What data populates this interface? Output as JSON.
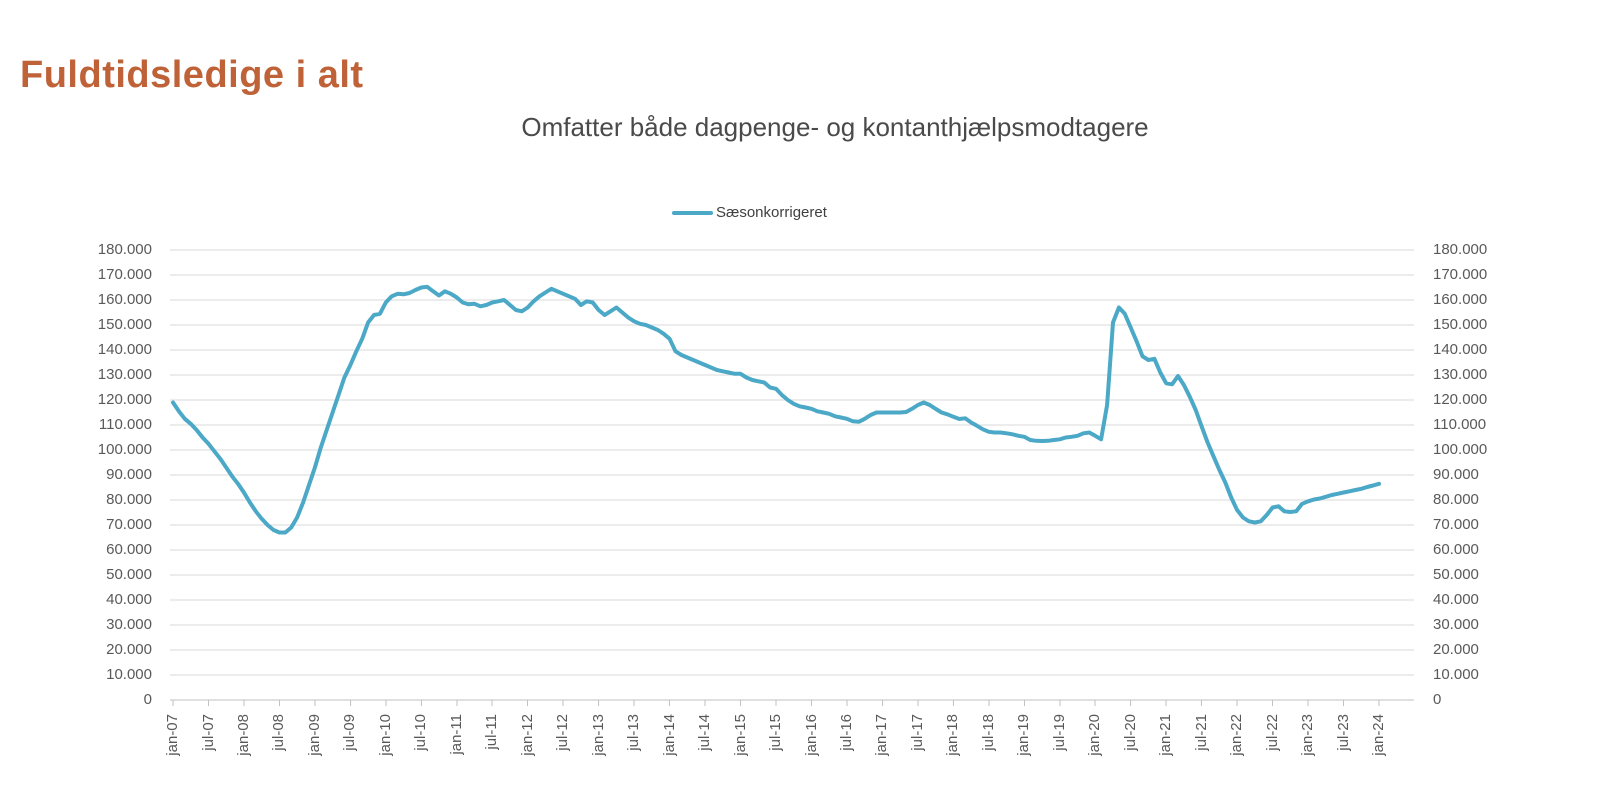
{
  "page_title": "Fuldtidsledige i alt",
  "colors": {
    "page_title": "#BF6238",
    "chart_title": "#4A4A4A",
    "axis_text": "#595959",
    "legend_text": "#404040",
    "gridline": "#D9D9D9",
    "axis_line": "#C2C2C2",
    "series_line": "#4BA8C6"
  },
  "chart_data": {
    "type": "line",
    "title": "Omfatter både dagpenge- og kontanthjælpsmodtagere",
    "legend_position": "top-center",
    "grid": "horizontal",
    "frequency": "monthly",
    "period_start": "jan-07",
    "period_end": "jan-24",
    "x_tick_interval_months": 6,
    "x_tick_labels": [
      "jan-07",
      "jul-07",
      "jan-08",
      "jul-08",
      "jan-09",
      "jul-09",
      "jan-10",
      "jul-10",
      "jan-11",
      "jul-11",
      "jan-12",
      "jul-12",
      "jan-13",
      "jul-13",
      "jan-14",
      "jul-14",
      "jan-15",
      "jul-15",
      "jan-16",
      "jul-16",
      "jan-17",
      "jul-17",
      "jan-18",
      "jul-18",
      "jan-19",
      "jul-19",
      "jan-20",
      "jul-20",
      "jan-21",
      "jul-21",
      "jan-22",
      "jul-22",
      "jan-23",
      "jul-23",
      "jan-24"
    ],
    "ylim": [
      0,
      180000
    ],
    "y_step": 10000,
    "y_tick_labels_format": "dot-thousands",
    "y_axis_sides": [
      "left",
      "right"
    ],
    "series": [
      {
        "name": "Sæsonkorrigeret",
        "color": "#4BA8C6",
        "values": [
          119000,
          115500,
          112500,
          110500,
          108000,
          105000,
          102500,
          99500,
          96500,
          93000,
          89500,
          86500,
          83000,
          79000,
          75500,
          72500,
          70000,
          68000,
          67000,
          67000,
          69000,
          73000,
          79000,
          86000,
          93000,
          101000,
          108000,
          115000,
          122000,
          129000,
          134000,
          139500,
          144500,
          151000,
          154000,
          154500,
          159000,
          161500,
          162500,
          162300,
          162800,
          164000,
          165000,
          165300,
          163500,
          161800,
          163500,
          162500,
          161000,
          159000,
          158300,
          158500,
          157500,
          158000,
          159000,
          159500,
          160000,
          158000,
          156000,
          155500,
          157000,
          159500,
          161500,
          163000,
          164500,
          163500,
          162500,
          161500,
          160500,
          158000,
          159500,
          159000,
          156000,
          154000,
          155500,
          157000,
          155000,
          153000,
          151500,
          150500,
          150000,
          149000,
          148000,
          146500,
          144500,
          139500,
          138000,
          137000,
          136000,
          135000,
          134000,
          133000,
          132000,
          131500,
          131000,
          130500,
          130500,
          129000,
          128000,
          127500,
          127000,
          125000,
          124500,
          122000,
          120000,
          118500,
          117500,
          117000,
          116500,
          115500,
          115000,
          114500,
          113500,
          113000,
          112500,
          111500,
          111300,
          112500,
          114000,
          115000,
          115000,
          115000,
          115000,
          115000,
          115200,
          116500,
          118000,
          119000,
          118000,
          116500,
          115000,
          114300,
          113300,
          112400,
          112700,
          111000,
          109700,
          108300,
          107300,
          107000,
          107000,
          106700,
          106300,
          105700,
          105300,
          104000,
          103700,
          103600,
          103700,
          104000,
          104300,
          105000,
          105300,
          105700,
          106700,
          107000,
          105700,
          104300,
          118000,
          151000,
          157000,
          154500,
          149000,
          143500,
          137500,
          136000,
          136500,
          131000,
          126700,
          126300,
          129600,
          126000,
          121300,
          116000,
          109500,
          103000,
          97500,
          92000,
          87000,
          81000,
          76000,
          73000,
          71500,
          71000,
          71500,
          74000,
          77000,
          77500,
          75500,
          75200,
          75500,
          78500,
          79500,
          80200,
          80600,
          81300,
          82000,
          82500,
          83000,
          83500,
          84000,
          84500,
          85200,
          85800,
          86500
        ]
      }
    ]
  }
}
